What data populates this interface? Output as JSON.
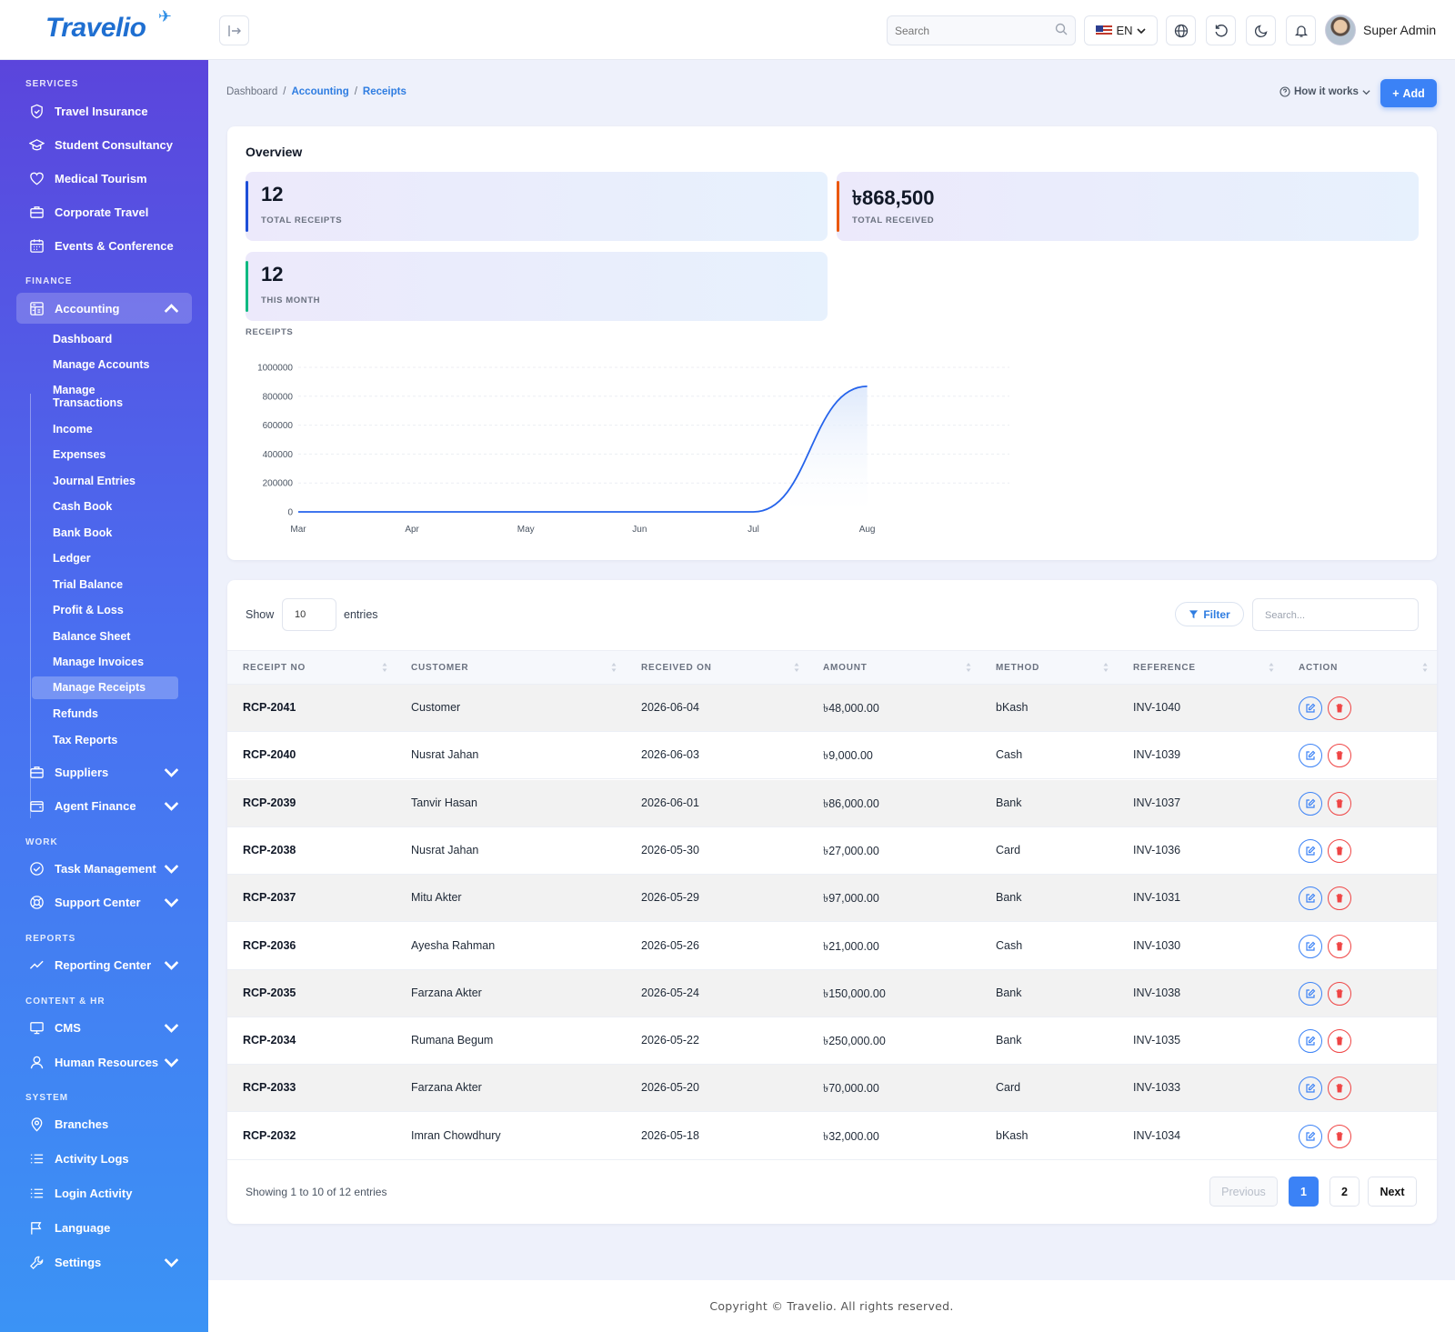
{
  "brand": {
    "logo_text": "Travelio"
  },
  "header": {
    "search_placeholder": "Search",
    "language": "EN",
    "user_name": "Super Admin"
  },
  "sidebar": {
    "sections": {
      "services": "SERVICES",
      "finance": "FINANCE",
      "work": "WORK",
      "reports": "REPORTS",
      "content_hr": "CONTENT & HR",
      "system": "SYSTEM"
    },
    "services": [
      "Travel Insurance",
      "Student Consultancy",
      "Medical Tourism",
      "Corporate Travel",
      "Events & Conference"
    ],
    "accounting": "Accounting",
    "accounting_sub": [
      "Dashboard",
      "Manage Accounts",
      "Manage Transactions",
      "Income",
      "Expenses",
      "Journal Entries",
      "Cash Book",
      "Bank Book",
      "Ledger",
      "Trial Balance",
      "Profit & Loss",
      "Balance Sheet",
      "Manage Invoices",
      "Manage Receipts",
      "Refunds",
      "Tax Reports"
    ],
    "suppliers": "Suppliers",
    "agent_finance": "Agent Finance",
    "task_management": "Task Management",
    "support_center": "Support Center",
    "reporting_center": "Reporting Center",
    "cms": "CMS",
    "human_resources": "Human Resources",
    "branches": "Branches",
    "activity_logs": "Activity Logs",
    "login_activity": "Login Activity",
    "language": "Language",
    "settings": "Settings"
  },
  "breadcrumb": {
    "home": "Dashboard",
    "sep": "/",
    "section": "Accounting",
    "current": "Receipts"
  },
  "actions": {
    "how_it_works": "How it works",
    "add": "Add"
  },
  "overview": {
    "title": "Overview",
    "stats": [
      {
        "value": "12",
        "label": "TOTAL RECEIPTS",
        "accent": "#1d4ed8"
      },
      {
        "value": "৳868,500",
        "label": "TOTAL RECEIVED",
        "accent": "#ea580c"
      },
      {
        "value": "12",
        "label": "THIS MONTH",
        "accent": "#10b981"
      }
    ],
    "chart_label": "RECEIPTS"
  },
  "chart_data": {
    "type": "area",
    "x": [
      "Mar",
      "Apr",
      "May",
      "Jun",
      "Jul",
      "Aug"
    ],
    "values": [
      0,
      0,
      0,
      0,
      0,
      868500
    ],
    "ylim": [
      0,
      1000000
    ],
    "yticks": [
      0,
      200000,
      400000,
      600000,
      800000,
      1000000
    ],
    "color": "#2563eb",
    "grid": true
  },
  "table": {
    "show_label": "Show",
    "page_size": "10",
    "entries_label": "entries",
    "filter_label": "Filter",
    "search_placeholder": "Search...",
    "columns": [
      "RECEIPT NO",
      "CUSTOMER",
      "RECEIVED ON",
      "AMOUNT",
      "METHOD",
      "REFERENCE",
      "ACTION"
    ],
    "rows": [
      [
        "RCP-2041",
        "Customer",
        "2026-06-04",
        "৳48,000.00",
        "bKash",
        "INV-1040"
      ],
      [
        "RCP-2040",
        "Nusrat Jahan",
        "2026-06-03",
        "৳9,000.00",
        "Cash",
        "INV-1039"
      ],
      [
        "RCP-2039",
        "Tanvir Hasan",
        "2026-06-01",
        "৳86,000.00",
        "Bank",
        "INV-1037"
      ],
      [
        "RCP-2038",
        "Nusrat Jahan",
        "2026-05-30",
        "৳27,000.00",
        "Card",
        "INV-1036"
      ],
      [
        "RCP-2037",
        "Mitu Akter",
        "2026-05-29",
        "৳97,000.00",
        "Bank",
        "INV-1031"
      ],
      [
        "RCP-2036",
        "Ayesha Rahman",
        "2026-05-26",
        "৳21,000.00",
        "Cash",
        "INV-1030"
      ],
      [
        "RCP-2035",
        "Farzana Akter",
        "2026-05-24",
        "৳150,000.00",
        "Bank",
        "INV-1038"
      ],
      [
        "RCP-2034",
        "Rumana Begum",
        "2026-05-22",
        "৳250,000.00",
        "Bank",
        "INV-1035"
      ],
      [
        "RCP-2033",
        "Farzana Akter",
        "2026-05-20",
        "৳70,000.00",
        "Card",
        "INV-1033"
      ],
      [
        "RCP-2032",
        "Imran Chowdhury",
        "2026-05-18",
        "৳32,000.00",
        "bKash",
        "INV-1034"
      ]
    ],
    "showing_text": "Showing 1 to 10 of 12 entries",
    "pagination": {
      "previous": "Previous",
      "pages": [
        "1",
        "2"
      ],
      "next": "Next",
      "current": "1"
    }
  },
  "footer": {
    "copyright": "Copyright © Travelio. All rights reserved."
  },
  "colors": {
    "primary": "#3b82f6",
    "sidebar_top": "#5b45dc",
    "sidebar_bottom": "#3b93f5",
    "danger": "#ef4444"
  }
}
